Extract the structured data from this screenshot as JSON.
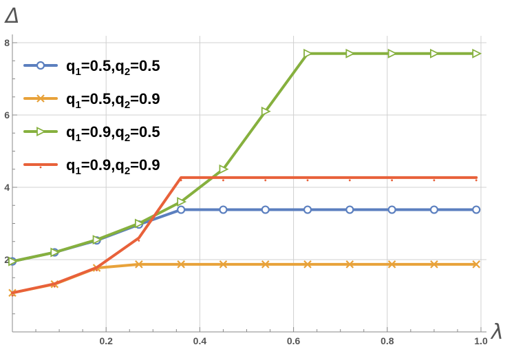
{
  "chart_data": {
    "type": "line",
    "xlabel": "λ",
    "ylabel": "Δ",
    "xlim": [
      0,
      1.0
    ],
    "ylim": [
      0,
      8
    ],
    "x_ticks": [
      0.2,
      0.4,
      0.6,
      0.8,
      1.0
    ],
    "x_tick_labels": [
      "0.2",
      "0.4",
      "0.6",
      "0.8",
      "1.0"
    ],
    "y_ticks": [
      2,
      4,
      6,
      8
    ],
    "y_tick_labels": [
      "2",
      "4",
      "6",
      "8"
    ],
    "grid": true,
    "legend_position": "top-left",
    "x": [
      0.0,
      0.09,
      0.18,
      0.27,
      0.36,
      0.45,
      0.54,
      0.63,
      0.72,
      0.81,
      0.9,
      0.99
    ],
    "series": [
      {
        "name": "q1=0.5,q2=0.5",
        "legend": {
          "q1": "0.5",
          "q2": "0.5"
        },
        "color": "#5b7fbf",
        "marker": "circle",
        "values": [
          1.95,
          2.2,
          2.53,
          2.97,
          3.38,
          3.38,
          3.38,
          3.38,
          3.38,
          3.38,
          3.38,
          3.38
        ]
      },
      {
        "name": "q1=0.5,q2=0.9",
        "legend": {
          "q1": "0.5",
          "q2": "0.9"
        },
        "color": "#e8a23a",
        "marker": "x",
        "values": [
          1.08,
          1.32,
          1.77,
          1.87,
          1.87,
          1.87,
          1.87,
          1.87,
          1.87,
          1.87,
          1.87,
          1.87
        ]
      },
      {
        "name": "q1=0.9,q2=0.5",
        "legend": {
          "q1": "0.9",
          "q2": "0.5"
        },
        "color": "#86b03e",
        "marker": "triangle-right",
        "values": [
          1.95,
          2.2,
          2.55,
          3.0,
          3.6,
          4.5,
          6.1,
          7.7,
          7.7,
          7.7,
          7.7,
          7.7
        ]
      },
      {
        "name": "q1=0.9,q2=0.9",
        "legend": {
          "q1": "0.9",
          "q2": "0.9"
        },
        "color": "#e8613a",
        "marker": "dot",
        "values": [
          1.08,
          1.33,
          1.78,
          2.6,
          4.27,
          4.27,
          4.27,
          4.27,
          4.27,
          4.27,
          4.27,
          4.27
        ]
      }
    ]
  }
}
